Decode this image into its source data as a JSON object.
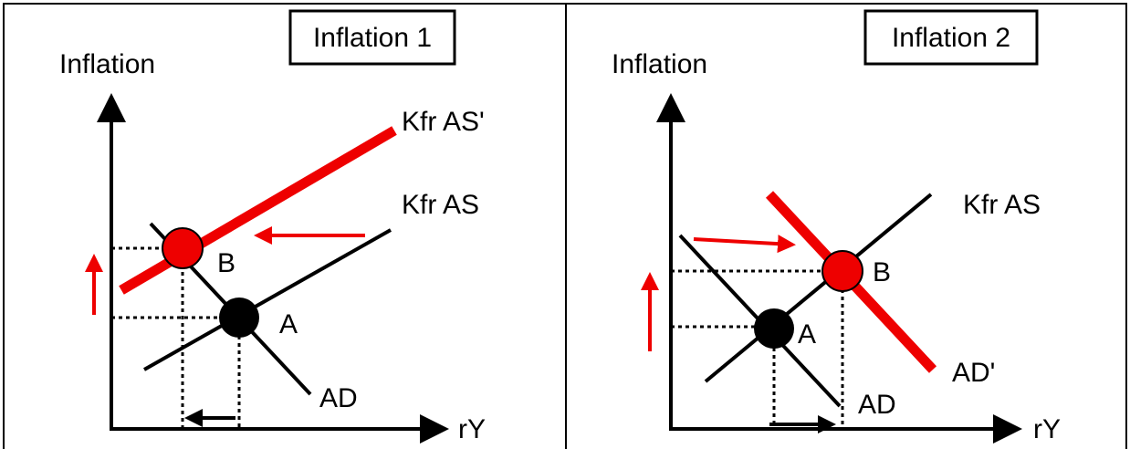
{
  "panels": [
    {
      "title": "Inflation 1",
      "y_axis_label": "Inflation",
      "x_axis_label": "rY",
      "curves": [
        "Kfr AS'",
        "Kfr AS",
        "AD"
      ],
      "points": [
        "B",
        "A"
      ]
    },
    {
      "title": "Inflation 2",
      "y_axis_label": "Inflation",
      "x_axis_label": "rY",
      "curves": [
        "Kfr AS",
        "AD",
        "AD'"
      ],
      "points": [
        "B",
        "A"
      ]
    }
  ]
}
